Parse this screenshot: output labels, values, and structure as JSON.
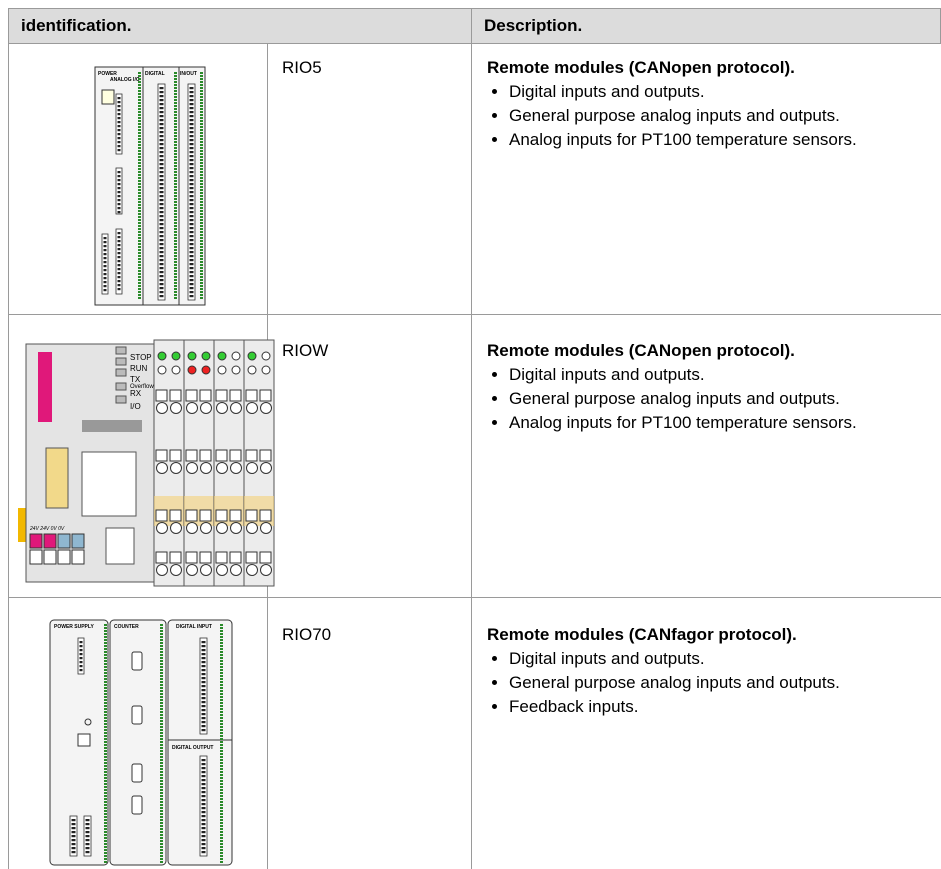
{
  "header": {
    "identification": "identification.",
    "description": "Description."
  },
  "rows": [
    {
      "image_labels": [
        "POWER",
        "ANALOG I/O",
        "DIGITAL",
        "IN/OUT"
      ],
      "model": "RIO5",
      "title": "Remote modules (CANopen protocol).",
      "bullets": [
        "Digital inputs and outputs.",
        "General purpose analog inputs and outputs.",
        "Analog inputs for PT100 temperature sensors."
      ]
    },
    {
      "image_labels": [
        "STOP",
        "RUN",
        "TX",
        "Overflow",
        "RX",
        "I/O",
        "24V 24V 0V 0V"
      ],
      "model": "RIOW",
      "title": "Remote modules (CANopen protocol).",
      "bullets": [
        "Digital inputs and outputs.",
        "General purpose analog inputs and outputs.",
        "Analog inputs for PT100 temperature sensors."
      ]
    },
    {
      "image_labels": [
        "POWER SUPPLY",
        "COUNTER",
        "DIGITAL INPUT",
        "DIGITAL OUTPUT"
      ],
      "model": "RIO70",
      "title": "Remote modules (CANfagor protocol).",
      "bullets": [
        "Digital inputs and outputs.",
        "General purpose analog inputs and outputs.",
        "Feedback inputs."
      ]
    }
  ]
}
